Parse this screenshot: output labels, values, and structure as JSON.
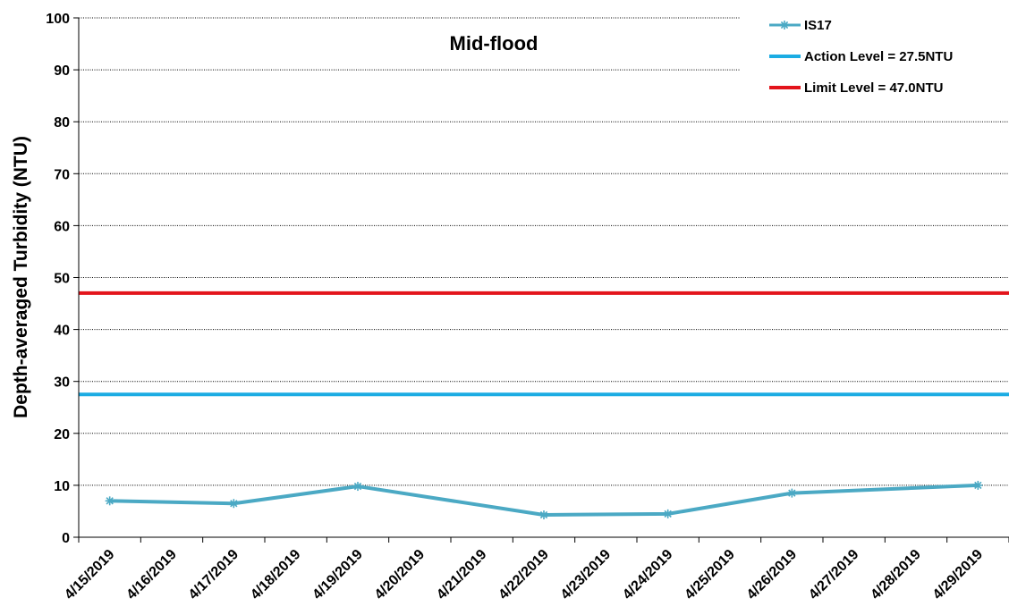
{
  "chart_data": {
    "type": "line",
    "title": "Mid-flood",
    "ylabel": "Depth-averaged Turbidity (NTU)",
    "xlabel": "",
    "ylim": [
      0,
      100
    ],
    "yticks": [
      0,
      10,
      20,
      30,
      40,
      50,
      60,
      70,
      80,
      90,
      100
    ],
    "grid": "horizontal dotted",
    "legend_position": "top-right",
    "categories": [
      "4/15/2019",
      "4/16/2019",
      "4/17/2019",
      "4/18/2019",
      "4/19/2019",
      "4/20/2019",
      "4/21/2019",
      "4/22/2019",
      "4/23/2019",
      "4/24/2019",
      "4/25/2019",
      "4/26/2019",
      "4/27/2019",
      "4/28/2019",
      "4/29/2019"
    ],
    "series": [
      {
        "name": "IS17",
        "color": "#4BA9C4",
        "marker": "asterisk",
        "points": [
          {
            "x": "4/15/2019",
            "y": 7.0
          },
          {
            "x": "4/17/2019",
            "y": 6.5
          },
          {
            "x": "4/19/2019",
            "y": 9.8
          },
          {
            "x": "4/22/2019",
            "y": 4.3
          },
          {
            "x": "4/24/2019",
            "y": 4.5
          },
          {
            "x": "4/26/2019",
            "y": 8.5
          },
          {
            "x": "4/29/2019",
            "y": 10.0
          }
        ]
      }
    ],
    "reference_lines": [
      {
        "name": "Action Level = 27.5NTU",
        "value": 27.5,
        "color": "#1BACE3"
      },
      {
        "name": "Limit Level = 47.0NTU",
        "value": 47.0,
        "color": "#E3141B"
      }
    ]
  }
}
